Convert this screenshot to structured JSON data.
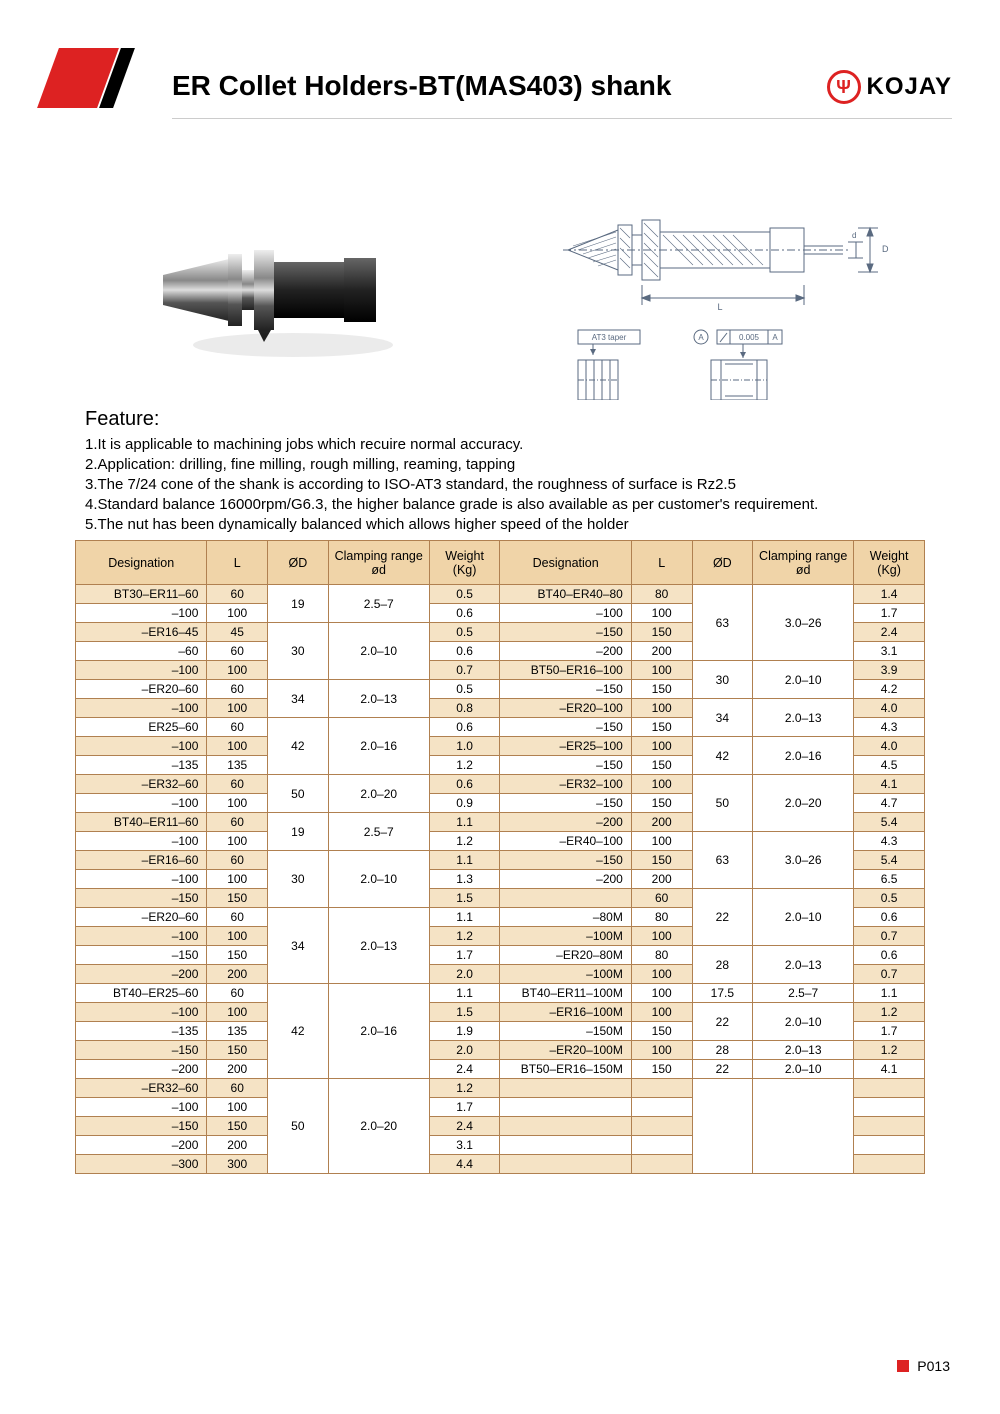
{
  "title": "ER Collet Holders-BT(MAS403)  shank",
  "brand": "KOJAY",
  "page_number": "P013",
  "colors": {
    "accent_red": "#d22",
    "header_bg": "#f0d4a8",
    "row_odd": "#f5e3c5",
    "row_even": "#ffffff",
    "border": "#b08050"
  },
  "feature_heading": "Feature:",
  "features": [
    "1.It is applicable to machining jobs which recuire normal accuracy.",
    "2.Application: drilling, fine milling, rough milling, reaming, tapping",
    "3.The 7/24 cone of the shank is according to ISO-AT3 standard, the roughness of surface is Rz2.5",
    "4.Standard balance 16000rpm/G6.3, the higher balance grade is also available as per customer's requirement.",
    "5.The nut has been dynamically balanced which allows higher speed of the holder"
  ],
  "diagram_labels": {
    "taper": "AT3 taper",
    "tolerance": "0.005 A",
    "dim_L": "L",
    "dim_D": "D",
    "dim_d": "d"
  },
  "table": {
    "columns": [
      "Designation",
      "L",
      "ØD",
      "Clamping range ød",
      "Weight (Kg)",
      "Designation",
      "L",
      "ØD",
      "Clamping range ød",
      "Weight (Kg)"
    ],
    "col_widths_pct": [
      13,
      6,
      6,
      10,
      7,
      13,
      6,
      6,
      10,
      7
    ],
    "left_groups": [
      {
        "od": "19",
        "range": "2.5–7",
        "rows": [
          {
            "d": "BT30–ER11–60",
            "l": "60",
            "w": "0.5"
          },
          {
            "d": "–100",
            "l": "100",
            "w": "0.6"
          }
        ]
      },
      {
        "od": "30",
        "range": "2.0–10",
        "rows": [
          {
            "d": "–ER16–45",
            "l": "45",
            "w": "0.5"
          },
          {
            "d": "–60",
            "l": "60",
            "w": "0.6"
          },
          {
            "d": "–100",
            "l": "100",
            "w": "0.7"
          }
        ]
      },
      {
        "od": "34",
        "range": "2.0–13",
        "rows": [
          {
            "d": "–ER20–60",
            "l": "60",
            "w": "0.5"
          },
          {
            "d": "–100",
            "l": "100",
            "w": "0.8"
          }
        ]
      },
      {
        "od": "42",
        "range": "2.0–16",
        "rows": [
          {
            "d": "ER25–60",
            "l": "60",
            "w": "0.6"
          },
          {
            "d": "–100",
            "l": "100",
            "w": "1.0"
          },
          {
            "d": "–135",
            "l": "135",
            "w": "1.2"
          }
        ]
      },
      {
        "od": "50",
        "range": "2.0–20",
        "rows": [
          {
            "d": "–ER32–60",
            "l": "60",
            "w": "0.6"
          },
          {
            "d": "–100",
            "l": "100",
            "w": "0.9"
          }
        ]
      },
      {
        "od": "19",
        "range": "2.5–7",
        "rows": [
          {
            "d": "BT40–ER11–60",
            "l": "60",
            "w": "1.1"
          },
          {
            "d": "–100",
            "l": "100",
            "w": "1.2"
          }
        ]
      },
      {
        "od": "30",
        "range": "2.0–10",
        "rows": [
          {
            "d": "–ER16–60",
            "l": "60",
            "w": "1.1"
          },
          {
            "d": "–100",
            "l": "100",
            "w": "1.3"
          },
          {
            "d": "–150",
            "l": "150",
            "w": "1.5"
          }
        ]
      },
      {
        "od": "34",
        "range": "2.0–13",
        "rows": [
          {
            "d": "–ER20–60",
            "l": "60",
            "w": "1.1"
          },
          {
            "d": "–100",
            "l": "100",
            "w": "1.2"
          },
          {
            "d": "–150",
            "l": "150",
            "w": "1.7"
          },
          {
            "d": "–200",
            "l": "200",
            "w": "2.0"
          }
        ]
      },
      {
        "od": "42",
        "range": "2.0–16",
        "rows": [
          {
            "d": "BT40–ER25–60",
            "l": "60",
            "w": "1.1"
          },
          {
            "d": "–100",
            "l": "100",
            "w": "1.5"
          },
          {
            "d": "–135",
            "l": "135",
            "w": "1.9"
          },
          {
            "d": "–150",
            "l": "150",
            "w": "2.0"
          },
          {
            "d": "–200",
            "l": "200",
            "w": "2.4"
          }
        ]
      },
      {
        "od": "50",
        "range": "2.0–20",
        "rows": [
          {
            "d": "–ER32–60",
            "l": "60",
            "w": "1.2"
          },
          {
            "d": "–100",
            "l": "100",
            "w": "1.7"
          },
          {
            "d": "–150",
            "l": "150",
            "w": "2.4"
          },
          {
            "d": "–200",
            "l": "200",
            "w": "3.1"
          },
          {
            "d": "–300",
            "l": "300",
            "w": "4.4"
          }
        ]
      }
    ],
    "right_groups": [
      {
        "od": "63",
        "range": "3.0–26",
        "rows": [
          {
            "d": "BT40–ER40–80",
            "l": "80",
            "w": "1.4"
          },
          {
            "d": "–100",
            "l": "100",
            "w": "1.7"
          },
          {
            "d": "–150",
            "l": "150",
            "w": "2.4"
          },
          {
            "d": "–200",
            "l": "200",
            "w": "3.1"
          }
        ]
      },
      {
        "od": "30",
        "range": "2.0–10",
        "rows": [
          {
            "d": "BT50–ER16–100",
            "l": "100",
            "w": "3.9"
          },
          {
            "d": "–150",
            "l": "150",
            "w": "4.2"
          }
        ]
      },
      {
        "od": "34",
        "range": "2.0–13",
        "rows": [
          {
            "d": "–ER20–100",
            "l": "100",
            "w": "4.0"
          },
          {
            "d": "–150",
            "l": "150",
            "w": "4.3"
          }
        ]
      },
      {
        "od": "42",
        "range": "2.0–16",
        "rows": [
          {
            "d": "–ER25–100",
            "l": "100",
            "w": "4.0"
          },
          {
            "d": "–150",
            "l": "150",
            "w": "4.5"
          }
        ]
      },
      {
        "od": "50",
        "range": "2.0–20",
        "rows": [
          {
            "d": "–ER32–100",
            "l": "100",
            "w": "4.1"
          },
          {
            "d": "–150",
            "l": "150",
            "w": "4.7"
          },
          {
            "d": "–200",
            "l": "200",
            "w": "5.4"
          }
        ]
      },
      {
        "od": "63",
        "range": "3.0–26",
        "rows": [
          {
            "d": "–ER40–100",
            "l": "100",
            "w": "4.3"
          },
          {
            "d": "–150",
            "l": "150",
            "w": "5.4"
          },
          {
            "d": "–200",
            "l": "200",
            "w": "6.5"
          }
        ]
      },
      {
        "od": "22",
        "range": "2.0–10",
        "rows": [
          {
            "d": "",
            "l": "60",
            "w": "0.5"
          },
          {
            "d": "–80M",
            "l": "80",
            "w": "0.6"
          },
          {
            "d": "–100M",
            "l": "100",
            "w": "0.7"
          }
        ]
      },
      {
        "od": "28",
        "range": "2.0–13",
        "rows": [
          {
            "d": "–ER20–80M",
            "l": "80",
            "w": "0.6"
          },
          {
            "d": "–100M",
            "l": "100",
            "w": "0.7"
          }
        ]
      },
      {
        "od": "17.5",
        "range": "2.5–7",
        "rows": [
          {
            "d": "BT40–ER11–100M",
            "l": "100",
            "w": "1.1"
          }
        ]
      },
      {
        "od": "22",
        "range": "2.0–10",
        "rows": [
          {
            "d": "–ER16–100M",
            "l": "100",
            "w": "1.2"
          },
          {
            "d": "–150M",
            "l": "150",
            "w": "1.7"
          }
        ]
      },
      {
        "od": "28",
        "range": "2.0–13",
        "rows": [
          {
            "d": "–ER20–100M",
            "l": "100",
            "w": "1.2"
          }
        ]
      },
      {
        "od": "22",
        "range": "2.0–10",
        "rows": [
          {
            "d": "BT50–ER16–150M",
            "l": "150",
            "w": "4.1"
          }
        ]
      },
      {
        "od": "",
        "range": "",
        "rows": [
          {
            "d": "",
            "l": "",
            "w": ""
          },
          {
            "d": "",
            "l": "",
            "w": ""
          },
          {
            "d": "",
            "l": "",
            "w": ""
          },
          {
            "d": "",
            "l": "",
            "w": ""
          },
          {
            "d": "",
            "l": "",
            "w": ""
          }
        ]
      }
    ]
  }
}
